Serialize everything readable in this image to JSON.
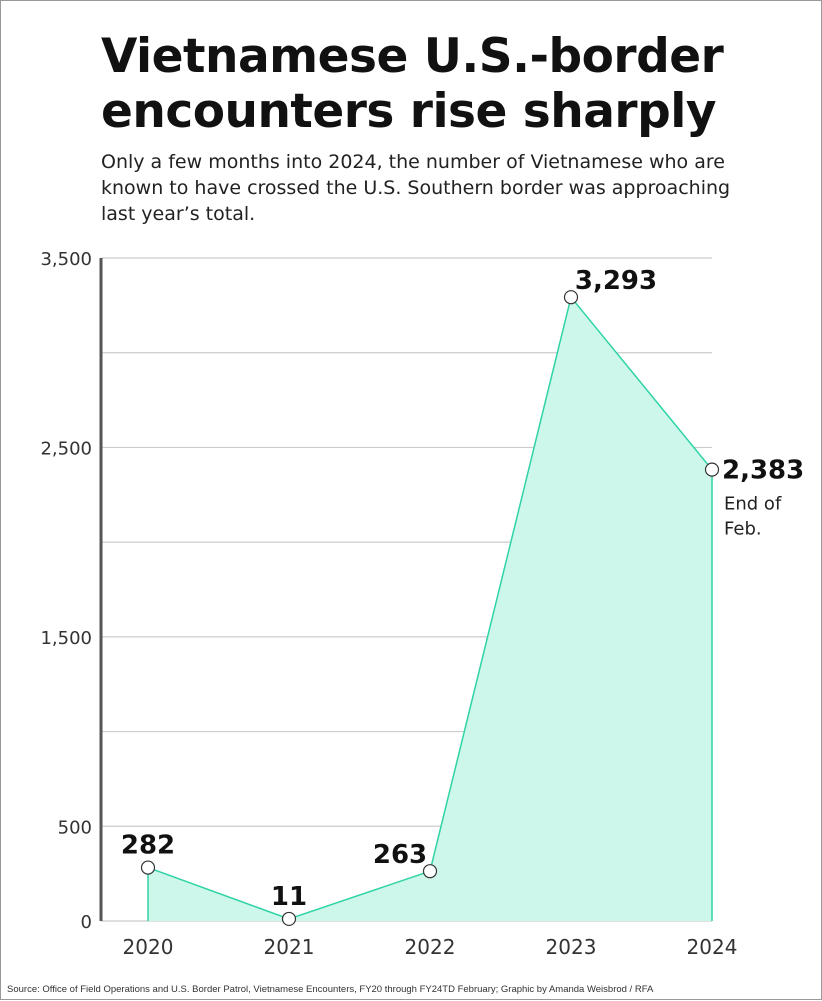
{
  "title": "Vietnamese U.S.-border encounters rise sharply",
  "subtitle": "Only a few months into 2024, the number of Vietnamese who are known to have crossed the U.S. Southern border was approaching last year’s total.",
  "source": "Source: Office of Field Operations and U.S. Border Patrol, Vietnamese Encounters, FY20 through FY24TD February; Graphic by Amanda Weisbrod / RFA",
  "chart_data": {
    "type": "area",
    "title": "Vietnamese U.S.-border encounters rise sharply",
    "categories": [
      "2020",
      "2021",
      "2022",
      "2023",
      "2024"
    ],
    "values": [
      282,
      11,
      263,
      3293,
      2383
    ],
    "data_labels": [
      "282",
      "11",
      "263",
      "3,293",
      "2,383"
    ],
    "annotations": [
      {
        "category": "2024",
        "text_lines": [
          "End of",
          "Feb."
        ]
      }
    ],
    "ylim": [
      0,
      3500
    ],
    "yticks": [
      0,
      500,
      1500,
      2500,
      3500
    ],
    "ytick_labels": [
      "0",
      "500",
      "1,500",
      "2,500",
      "3,500"
    ],
    "gridlines": [
      500,
      1000,
      1500,
      2000,
      2500,
      3000,
      3500
    ],
    "grid": true,
    "legend": "none",
    "colors": {
      "line": "#2ed3a6",
      "fill": "#cdf7eb",
      "grid": "#cccccc",
      "axis": "#555555"
    }
  }
}
